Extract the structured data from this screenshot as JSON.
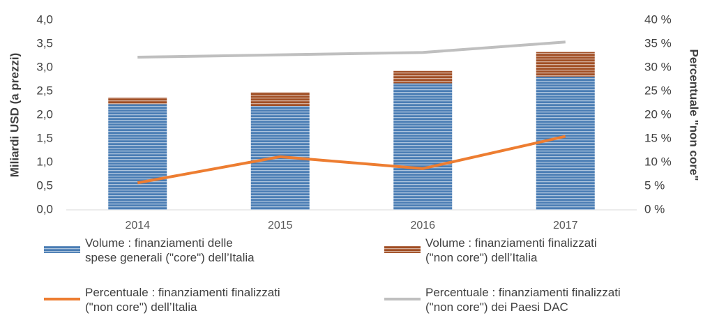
{
  "chart_data": {
    "type": "bar",
    "stacked": true,
    "categories": [
      "2014",
      "2015",
      "2016",
      "2017"
    ],
    "ylabel": "Miliardi USD (a prezzi)",
    "y2label": "Percentuale \"non core\"",
    "ylim": [
      0,
      4
    ],
    "yticks": [
      {
        "value": 0,
        "label": "0,0"
      },
      {
        "value": 0.5,
        "label": "0,5"
      },
      {
        "value": 1,
        "label": "1,0"
      },
      {
        "value": 1.5,
        "label": "1,5"
      },
      {
        "value": 2,
        "label": "2,0"
      },
      {
        "value": 2.5,
        "label": "2,5"
      },
      {
        "value": 3,
        "label": "3,0"
      },
      {
        "value": 3.5,
        "label": "3,5"
      },
      {
        "value": 4,
        "label": "4,0"
      }
    ],
    "y2lim": [
      0,
      40
    ],
    "y2ticks": [
      {
        "value": 0,
        "label": "0 %"
      },
      {
        "value": 5,
        "label": "5 %"
      },
      {
        "value": 10,
        "label": "10 %"
      },
      {
        "value": 15,
        "label": "15 %"
      },
      {
        "value": 20,
        "label": "20 %"
      },
      {
        "value": 25,
        "label": "25 %"
      },
      {
        "value": 30,
        "label": "30 %"
      },
      {
        "value": 35,
        "label": "35 %"
      },
      {
        "value": 40,
        "label": "40 %"
      }
    ],
    "legend": "bottom",
    "series": [
      {
        "name": "Volume : finanziamenti delle\nspese generali (\"core\") dell’Italia",
        "type": "bar",
        "color": "#4a7db4",
        "values": [
          2.23,
          2.19,
          2.67,
          2.81
        ]
      },
      {
        "name": "Volume : finanziamenti finalizzati\n(\"non core\") dell’Italia",
        "type": "bar",
        "color": "#a14f25",
        "values": [
          0.14,
          0.29,
          0.26,
          0.52
        ]
      },
      {
        "name": "Percentuale : finanziamenti finalizzati\n(\"non core\") dell’Italia",
        "type": "line",
        "axis": "y2",
        "color": "#ed7d31",
        "values": [
          5.7,
          11.2,
          8.7,
          15.5
        ]
      },
      {
        "name": "Percentuale : finanziamenti finalizzati\n(\"non core\") dei Paesi DAC",
        "type": "line",
        "axis": "y2",
        "color": "#bfbfbf",
        "values": [
          32.2,
          32.7,
          33.2,
          35.4
        ]
      }
    ]
  }
}
